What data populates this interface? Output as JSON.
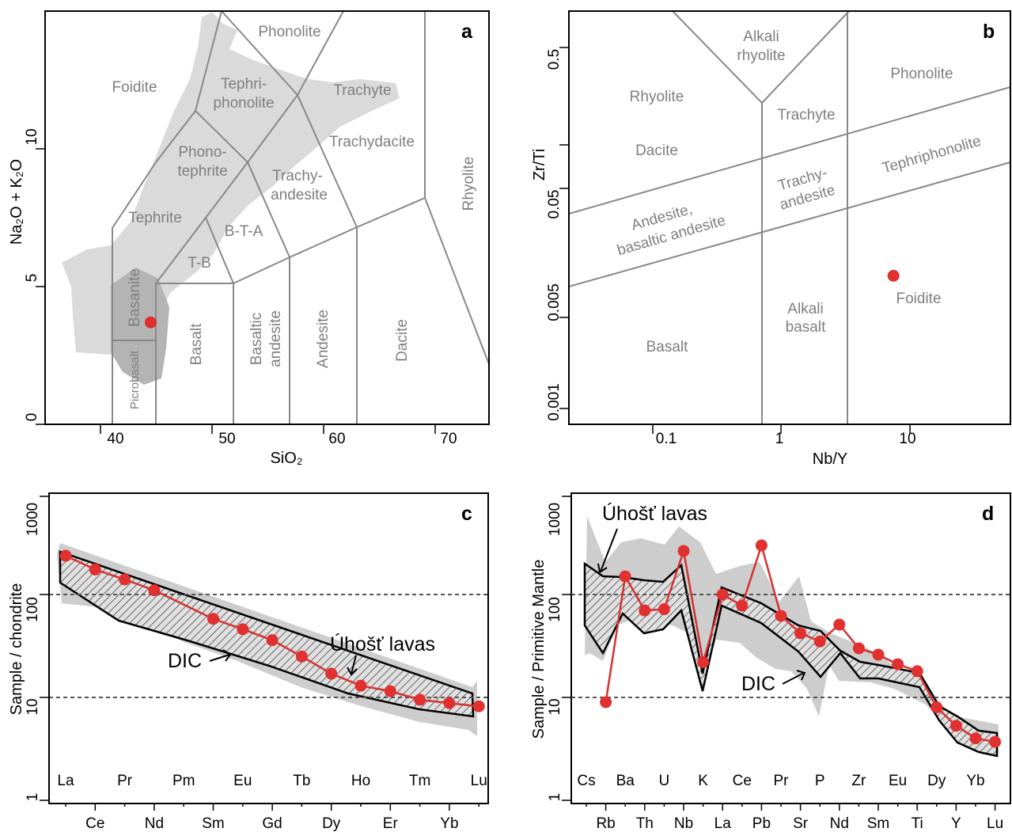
{
  "chart_data": [
    {
      "panel": "a",
      "type": "scatter",
      "xlabel": "SiO₂",
      "ylabel": "Na₂O + K₂O",
      "xlim": [
        35,
        75
      ],
      "ylim": [
        0,
        15
      ],
      "xticks": [
        "40",
        "50",
        "60",
        "70"
      ],
      "yticks": [
        "0",
        "5",
        "10"
      ],
      "fields": [
        "Foidite",
        "Phonolite",
        "Tephri-",
        "phonolite",
        "Trachyte",
        "Phono-",
        "tephrite",
        "Trachy-",
        "andesite",
        "Trachydacite",
        "Rhyolite",
        "Tephrite",
        "B-T-A",
        "T-B",
        "Basanite",
        "Picrobasalt",
        "Basalt",
        "Basaltic",
        "andesite",
        "Andesite",
        "Dacite"
      ],
      "points": [
        {
          "x": 44.5,
          "y": 3.7
        }
      ]
    },
    {
      "panel": "b",
      "type": "scatter",
      "xlabel": "Nb/Y",
      "ylabel": "Zr/Ti",
      "xscale": "log",
      "yscale": "log",
      "xticks": [
        "0.1",
        "1",
        "10"
      ],
      "yticks": [
        "0.001",
        "0.005",
        "0.05",
        "0.5"
      ],
      "fields": [
        "Alkali",
        "rhyolite",
        "Rhyolite",
        "Phonolite",
        "Trachyte",
        "Dacite",
        "Tephriphonolite",
        "Trachy-",
        "andesite",
        "Andesite,",
        "basaltic andesite",
        "Foidite",
        "Alkali",
        "basalt",
        "Basalt"
      ],
      "points": [
        {
          "x": 7.5,
          "y": 0.012
        }
      ]
    },
    {
      "panel": "c",
      "type": "line",
      "ylabel": "Sample / chondrite",
      "yscale": "log",
      "ylim": [
        1,
        1500
      ],
      "yticks": [
        "1",
        "10",
        "100",
        "1000"
      ],
      "categories_top": [
        "La",
        "Pr",
        "Pm",
        "Eu",
        "Tb",
        "Ho",
        "Tm",
        "Lu"
      ],
      "categories_bottom": [
        "Ce",
        "Nd",
        "Sm",
        "Gd",
        "Dy",
        "Er",
        "Yb"
      ],
      "categories": [
        "La",
        "Ce",
        "Pr",
        "Nd",
        "Pm",
        "Sm",
        "Eu",
        "Gd",
        "Tb",
        "Dy",
        "Ho",
        "Er",
        "Tm",
        "Yb",
        "Lu"
      ],
      "series": [
        {
          "values": [
            238,
            175,
            140,
            110,
            null,
            58,
            46,
            36,
            25,
            17,
            13,
            11.5,
            9.5,
            8.8,
            8.2
          ]
        }
      ],
      "reference_lines": [
        10,
        100
      ],
      "annotations": [
        "DIC",
        "Úhošť lavas"
      ]
    },
    {
      "panel": "d",
      "type": "line",
      "ylabel": "Sample / Primitive Mantle",
      "yscale": "log",
      "ylim": [
        1,
        1500
      ],
      "yticks": [
        "1",
        "10",
        "100",
        "1000"
      ],
      "categories_top": [
        "Cs",
        "Ba",
        "U",
        "K",
        "Ce",
        "Pr",
        "P",
        "Zr",
        "Eu",
        "Dy",
        "Yb"
      ],
      "categories_bottom": [
        "Rb",
        "Th",
        "Nb",
        "La",
        "Pb",
        "Sr",
        "Nd",
        "Sm",
        "Ti",
        "Y",
        "Lu"
      ],
      "categories": [
        "Cs",
        "Rb",
        "Ba",
        "Th",
        "U",
        "Nb",
        "K",
        "La",
        "Ce",
        "Pb",
        "Pr",
        "Sr",
        "P",
        "Nd",
        "Zr",
        "Sm",
        "Eu",
        "Ti",
        "Dy",
        "Y",
        "Yb",
        "Lu"
      ],
      "series": [
        {
          "values": [
            null,
            9,
            150,
            70,
            72,
            265,
            22,
            100,
            78,
            300,
            62,
            42,
            35,
            51,
            30,
            26,
            21,
            18,
            8,
            5.3,
            4,
            3.7
          ]
        }
      ],
      "reference_lines": [
        10,
        100
      ],
      "annotations": [
        "Úhošť lavas",
        "DIC"
      ]
    }
  ]
}
